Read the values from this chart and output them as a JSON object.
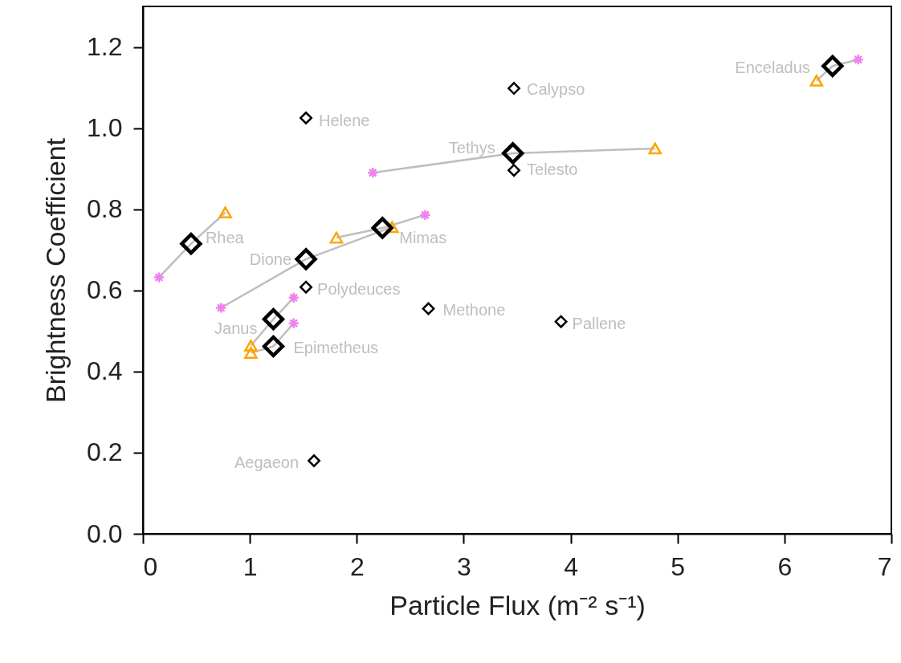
{
  "chart_data": {
    "type": "scatter",
    "xlabel": "Particle Flux (m⁻² s⁻¹)",
    "ylabel": "Brightness Coefficient",
    "xlim": [
      0,
      7
    ],
    "ylim": [
      0,
      1.3
    ],
    "xticks": [
      0,
      1,
      2,
      3,
      4,
      5,
      6,
      7
    ],
    "yticks": [
      {
        "value": 0,
        "label": "0.0"
      },
      {
        "value": 0.2,
        "label": "0.2"
      },
      {
        "value": 0.4,
        "label": "0.4"
      },
      {
        "value": 0.6,
        "label": "0.6"
      },
      {
        "value": 0.8,
        "label": "0.8"
      },
      {
        "value": 1,
        "label": "1.0"
      },
      {
        "value": 1.2,
        "label": "1.2"
      }
    ],
    "grid": false,
    "series": [
      {
        "type": "line",
        "color": "#bebebe",
        "marker": "none",
        "line_style": "solid",
        "x": [
          0.15,
          0.45,
          0.77
        ],
        "values": [
          0.632,
          0.715,
          0.792
        ]
      },
      {
        "type": "line",
        "color": "#bebebe",
        "marker": "none",
        "line_style": "solid",
        "x": [
          0.73,
          1.525,
          2.33
        ],
        "values": [
          0.557,
          0.677,
          0.756
        ]
      },
      {
        "type": "line",
        "color": "#bebebe",
        "marker": "none",
        "line_style": "solid",
        "x": [
          1.81,
          2.24,
          2.64
        ],
        "values": [
          0.73,
          0.754,
          0.786
        ]
      },
      {
        "type": "line",
        "color": "#bebebe",
        "marker": "none",
        "line_style": "solid",
        "x": [
          2.15,
          3.46,
          4.79
        ],
        "values": [
          0.89,
          0.938,
          0.95
        ]
      },
      {
        "type": "line",
        "color": "#bebebe",
        "marker": "none",
        "line_style": "solid",
        "x": [
          6.3,
          6.45,
          6.69
        ],
        "values": [
          1.117,
          1.153,
          1.169
        ]
      },
      {
        "type": "line",
        "color": "#bebebe",
        "marker": "none",
        "line_style": "solid",
        "x": [
          1.01,
          1.22,
          1.41
        ],
        "values": [
          0.464,
          0.529,
          0.582
        ]
      },
      {
        "type": "line",
        "color": "#bebebe",
        "marker": "none",
        "line_style": "solid",
        "x": [
          1.01,
          1.22,
          1.41
        ],
        "values": [
          0.446,
          0.462,
          0.519
        ]
      },
      {
        "color": "#ffa500",
        "marker": "triangle",
        "x": [
          0.77,
          2.33,
          1.81,
          4.79,
          6.3,
          1.01,
          1.01
        ],
        "values": [
          0.792,
          0.756,
          0.73,
          0.95,
          1.117,
          0.464,
          0.446
        ]
      },
      {
        "color": "#ee82ee",
        "marker": "cross",
        "x": [
          0.15,
          0.73,
          2.64,
          2.15,
          6.69,
          1.41,
          1.41
        ],
        "values": [
          0.632,
          0.557,
          0.786,
          0.89,
          1.169,
          0.582,
          0.519
        ]
      },
      {
        "color": "#000000",
        "marker": "diamond",
        "x": [
          1.525,
          3.47,
          3.47,
          1.525,
          2.67,
          3.91,
          1.6
        ],
        "values": [
          1.025,
          1.098,
          0.896,
          0.608,
          0.555,
          0.523,
          0.18
        ]
      },
      {
        "color": "#000000",
        "marker": "diamond",
        "x": [
          0.45,
          1.525,
          2.24,
          3.46,
          6.45,
          1.22,
          1.22
        ],
        "values": [
          0.715,
          0.677,
          0.754,
          0.938,
          1.153,
          0.529,
          0.462
        ]
      }
    ],
    "annotations": [
      {
        "text": "Helene",
        "x": 1.525,
        "y": 1.025
      },
      {
        "text": "Calypso",
        "x": 3.47,
        "y": 1.098
      },
      {
        "text": "Tethys",
        "x": 3.46,
        "y": 0.938
      },
      {
        "text": "Telesto",
        "x": 3.47,
        "y": 0.896
      },
      {
        "text": "Enceladus",
        "x": 6.45,
        "y": 1.153
      },
      {
        "text": "Rhea",
        "x": 0.45,
        "y": 0.715
      },
      {
        "text": "Mimas",
        "x": 2.24,
        "y": 0.754
      },
      {
        "text": "Dione",
        "x": 1.525,
        "y": 0.677
      },
      {
        "text": "Polydeuces",
        "x": 1.525,
        "y": 0.608
      },
      {
        "text": "Methone",
        "x": 2.67,
        "y": 0.555
      },
      {
        "text": "Pallene",
        "x": 3.91,
        "y": 0.523
      },
      {
        "text": "Janus",
        "x": 1.22,
        "y": 0.529
      },
      {
        "text": "Epimetheus",
        "x": 1.22,
        "y": 0.462
      },
      {
        "text": "Aegaeon",
        "x": 1.6,
        "y": 0.18
      }
    ]
  }
}
